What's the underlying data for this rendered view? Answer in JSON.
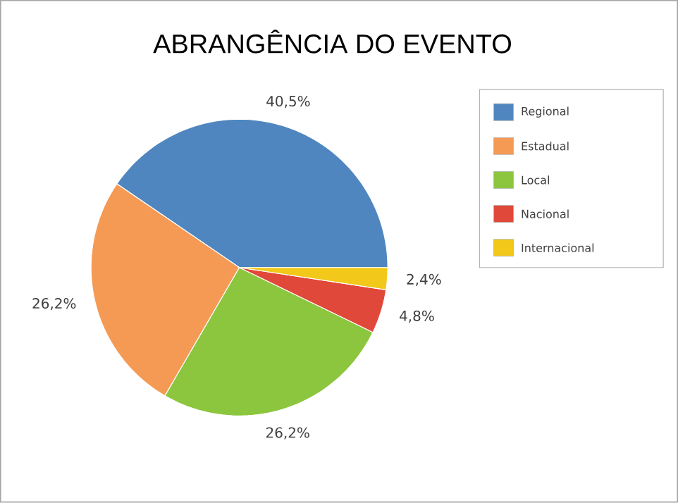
{
  "chart_data": {
    "type": "pie",
    "title": "ABRANGÊNCIA DO EVENTO",
    "categories": [
      "Regional",
      "Estadual",
      "Local",
      "Nacional",
      "Internacional"
    ],
    "values": [
      40.5,
      26.2,
      26.2,
      4.8,
      2.4
    ],
    "value_labels": [
      "40,5%",
      "26,2%",
      "26,2%",
      "4,8%",
      "2,4%"
    ],
    "colors": [
      "#4f86bf",
      "#f59a55",
      "#8cc63e",
      "#e0483a",
      "#f2c81a"
    ],
    "legend": "right"
  }
}
